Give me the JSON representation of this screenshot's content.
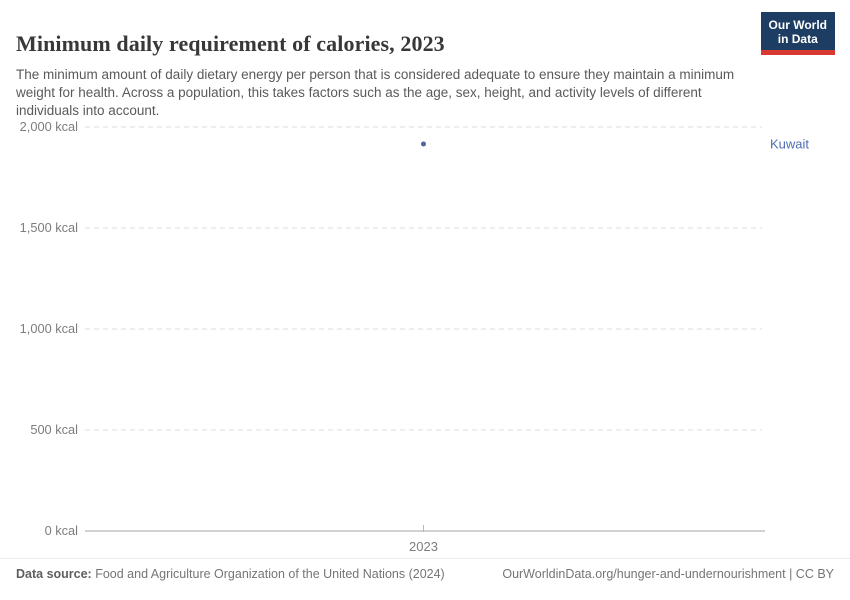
{
  "header": {
    "title": "Minimum daily requirement of calories, 2023",
    "subtitle": "The minimum amount of daily dietary energy per person that is considered adequate to ensure they maintain a minimum weight for health. Across a population, this takes factors such as the age, sex, height, and activity levels of different individuals into account.",
    "logo": {
      "line1": "Our World",
      "line2": "in Data",
      "bg_color": "#1d3d63",
      "accent_color": "#d73a32"
    }
  },
  "chart_data": {
    "type": "scatter",
    "title": "Minimum daily requirement of calories, 2023",
    "x": [
      2023
    ],
    "series": [
      {
        "name": "Kuwait",
        "values": [
          1916
        ],
        "point_color": "#4c669f",
        "label_color": "#4d6db3"
      }
    ],
    "xlabel": "",
    "ylabel": "",
    "ylim": [
      0,
      2000
    ],
    "yticks": [
      {
        "value": 0,
        "label": "0 kcal"
      },
      {
        "value": 500,
        "label": "500 kcal"
      },
      {
        "value": 1000,
        "label": "1,000 kcal"
      },
      {
        "value": 1500,
        "label": "1,500 kcal"
      },
      {
        "value": 2000,
        "label": "2,000 kcal"
      }
    ],
    "xticks": [
      {
        "value": 2023,
        "label": "2023"
      }
    ],
    "grid": "horizontal dashed",
    "legend": "entity label at right of plot",
    "axis_color": "#a3a3a3",
    "grid_color": "#dcdcdc",
    "tick_label_color": "#7d7d7d"
  },
  "footer": {
    "datasource_label": "Data source:",
    "datasource_value": " Food and Agriculture Organization of the United Nations (2024)",
    "link": "OurWorldinData.org/hunger-and-undernourishment | CC BY"
  }
}
